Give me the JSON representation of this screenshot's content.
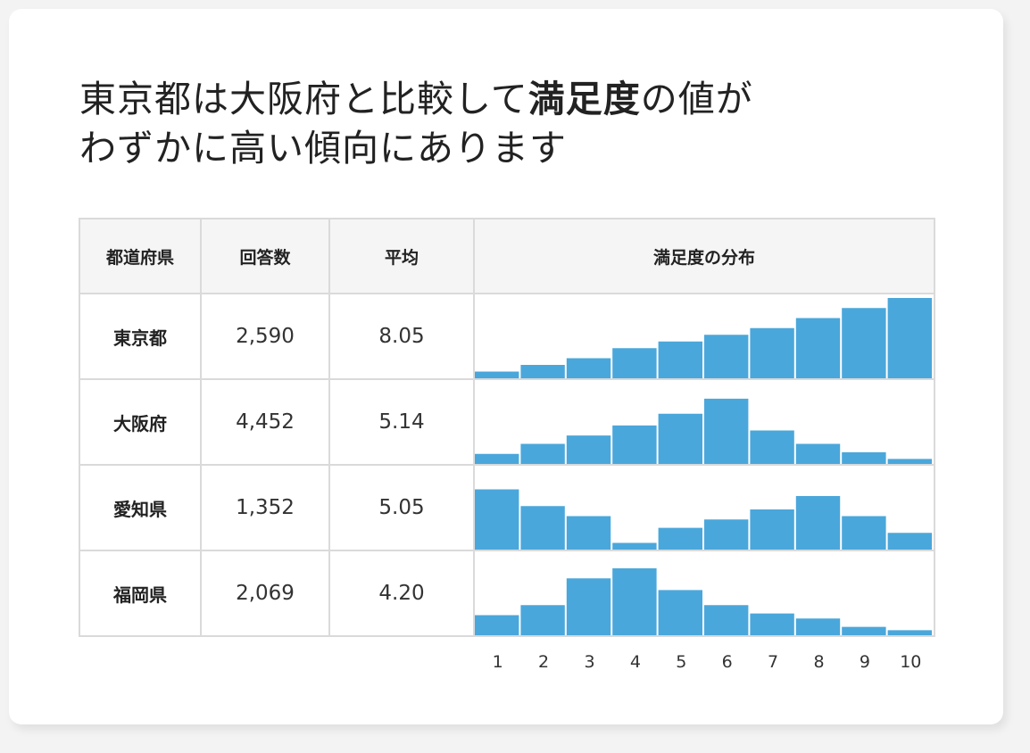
{
  "headline": {
    "part1": "東京都は大阪府と比較して",
    "bold": "満足度",
    "part2": "の値が",
    "line2": "わずかに高い傾向にあります"
  },
  "table": {
    "headers": [
      "都道府県",
      "回答数",
      "平均",
      "満足度の分布"
    ]
  },
  "colors": {
    "bar": "#4aa7db",
    "border": "#dadada",
    "header_bg": "#f5f5f5"
  },
  "chart_data": {
    "type": "bar",
    "categories": [
      "1",
      "2",
      "3",
      "4",
      "5",
      "6",
      "7",
      "8",
      "9",
      "10"
    ],
    "series": [
      {
        "name": "東京都",
        "count": "2,590",
        "mean": "8.05",
        "values": [
          2,
          4,
          6,
          9,
          11,
          13,
          15,
          18,
          21,
          24
        ]
      },
      {
        "name": "大阪府",
        "count": "4,452",
        "mean": "5.14",
        "values": [
          3,
          6,
          8.5,
          11.5,
          15,
          19.5,
          10,
          6,
          3.5,
          1.5
        ]
      },
      {
        "name": "愛知県",
        "count": "1,352",
        "mean": "5.05",
        "values": [
          18,
          13,
          10,
          2,
          6.5,
          9,
          12,
          16,
          10,
          5
        ]
      },
      {
        "name": "福岡県",
        "count": "2,069",
        "mean": "4.20",
        "values": [
          6,
          9,
          17,
          20,
          13.5,
          9,
          6.5,
          5,
          2.5,
          1.5
        ]
      }
    ]
  }
}
